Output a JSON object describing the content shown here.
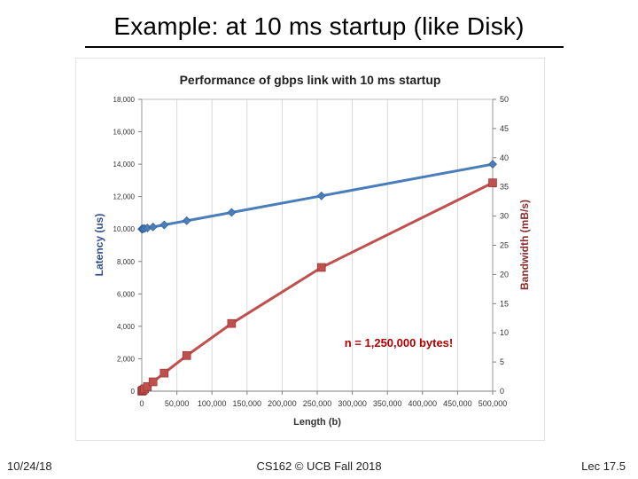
{
  "slide": {
    "title": "Example: at 10 ms startup (like Disk)",
    "footer_date": "10/24/18",
    "footer_course": "CS162 © UCB Fall 2018",
    "footer_lecture": "Lec 17.5"
  },
  "chart_data": {
    "type": "line",
    "title": "Performance of gbps link with 10 ms startup",
    "xlabel": "Length (b)",
    "ylabel": "Latency (us)",
    "y2label": "Bandwidth (mB/s)",
    "annotation": "n = 1,250,000 bytes!",
    "xlim": [
      0,
      500000
    ],
    "ylim": [
      0,
      18000
    ],
    "y2lim": [
      0,
      50
    ],
    "x_ticks": [
      0,
      50000,
      100000,
      150000,
      200000,
      250000,
      300000,
      350000,
      400000,
      450000,
      500000
    ],
    "x_tick_labels": [
      "0",
      "50,000",
      "100,000",
      "150,000",
      "200,000",
      "250,000",
      "300,000",
      "350,000",
      "400,000",
      "450,000",
      "500,000"
    ],
    "y_ticks": [
      0,
      2000,
      4000,
      6000,
      8000,
      10000,
      12000,
      14000,
      16000,
      18000
    ],
    "y_tick_labels": [
      "0",
      "2,000",
      "4,000",
      "6,000",
      "8,000",
      "10,000",
      "12,000",
      "14,000",
      "16,000",
      "18,000"
    ],
    "y2_ticks": [
      0,
      5,
      10,
      15,
      20,
      25,
      30,
      35,
      40,
      45,
      50
    ],
    "y2_tick_labels": [
      "0",
      "5",
      "10",
      "15",
      "20",
      "25",
      "30",
      "35",
      "40",
      "45",
      "50"
    ],
    "grid": "vertical",
    "series": [
      {
        "axis": "left",
        "color": "#4a7ebb",
        "marker": "diamond",
        "points": [
          [
            0,
            10000
          ],
          [
            1000,
            10008
          ],
          [
            2000,
            10016
          ],
          [
            4000,
            10032
          ],
          [
            8000,
            10064
          ],
          [
            16000,
            10128
          ],
          [
            32000,
            10256
          ],
          [
            64000,
            10512
          ],
          [
            128000,
            11024
          ],
          [
            256000,
            12048
          ],
          [
            500000,
            14000
          ]
        ]
      },
      {
        "axis": "right",
        "color": "#c0504d",
        "marker": "square",
        "points": [
          [
            0,
            0
          ],
          [
            1000,
            0.1
          ],
          [
            2000,
            0.2
          ],
          [
            4000,
            0.4
          ],
          [
            8000,
            0.8
          ],
          [
            16000,
            1.6
          ],
          [
            32000,
            3.1
          ],
          [
            64000,
            6.1
          ],
          [
            128000,
            11.6
          ],
          [
            256000,
            21.2
          ],
          [
            500000,
            35.7
          ]
        ]
      }
    ]
  }
}
